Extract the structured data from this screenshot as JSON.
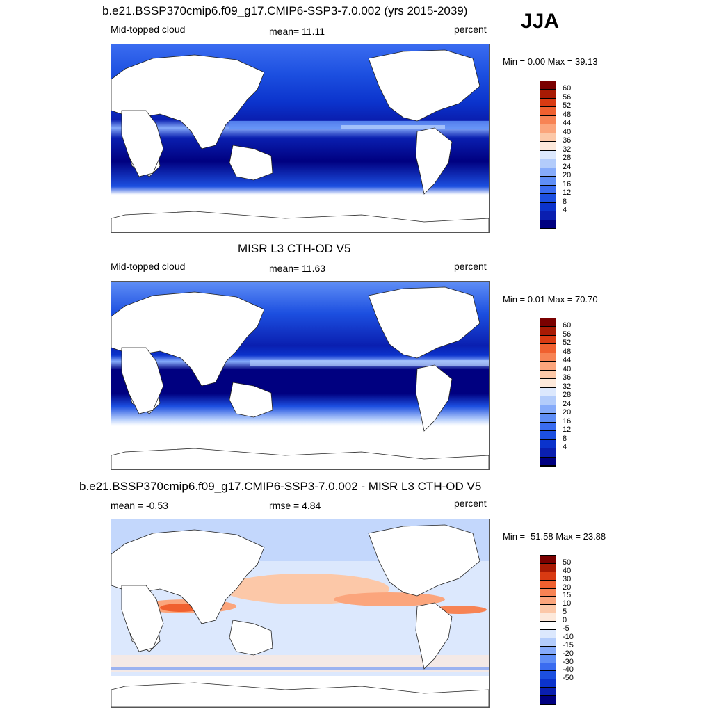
{
  "season": "JJA",
  "panels": [
    {
      "title": "b.e21.BSSP370cmip6.f09_g17.CMIP6-SSP3-7.0.002 (yrs 2015-2039)",
      "left_label": "Mid-topped cloud",
      "center_label": "mean=  11.11",
      "right_label": "percent",
      "minmax": "Min =   0.00 Max =  39.13",
      "palette": "abs",
      "colorbar_labels": [
        "60",
        "56",
        "52",
        "48",
        "44",
        "40",
        "36",
        "32",
        "28",
        "24",
        "20",
        "16",
        "12",
        "8",
        "4"
      ]
    },
    {
      "title": "MISR L3 CTH-OD V5",
      "left_label": "Mid-topped cloud",
      "center_label": "mean=  11.63",
      "right_label": "percent",
      "minmax": "Min =   0.01 Max =  70.70",
      "palette": "abs",
      "colorbar_labels": [
        "60",
        "56",
        "52",
        "48",
        "44",
        "40",
        "36",
        "32",
        "28",
        "24",
        "20",
        "16",
        "12",
        "8",
        "4"
      ]
    },
    {
      "title": "b.e21.BSSP370cmip6.f09_g17.CMIP6-SSP3-7.0.002 - MISR L3 CTH-OD V5",
      "left_label": "mean =  -0.53",
      "center_label": "rmse =   4.84",
      "right_label": "percent",
      "minmax": "Min = -51.58 Max =  23.88",
      "palette": "diff",
      "colorbar_labels": [
        "50",
        "40",
        "30",
        "20",
        "15",
        "10",
        "5",
        "0",
        "-5",
        "-10",
        "-15",
        "-20",
        "-30",
        "-40",
        "-50"
      ]
    }
  ],
  "colors": {
    "abs_palette": [
      "#000080",
      "#0a1fb0",
      "#0b33cc",
      "#1c4fe0",
      "#3a6cf0",
      "#5f8ef6",
      "#86abfa",
      "#b3ccfb",
      "#dce8fd",
      "#fde9db",
      "#fcc8a8",
      "#fba57c",
      "#f78354",
      "#f0602f",
      "#d93a12",
      "#a81a04",
      "#7a0000"
    ],
    "diff_palette": [
      "#000080",
      "#0a1fb0",
      "#0b33cc",
      "#1c4fe0",
      "#3a6cf0",
      "#5f8ef6",
      "#86abfa",
      "#b3ccfb",
      "#dce8fd",
      "#ffffff",
      "#fde9db",
      "#fcc8a8",
      "#fba57c",
      "#f78354",
      "#f0602f",
      "#d93a12",
      "#a81a04",
      "#7a0000"
    ]
  }
}
